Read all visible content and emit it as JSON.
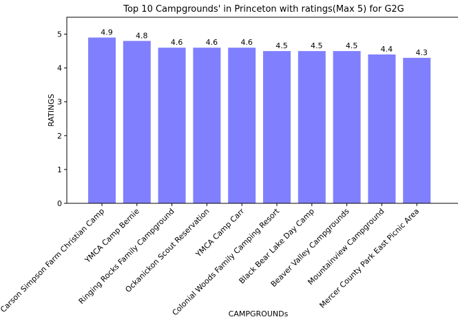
{
  "chart_data": {
    "type": "bar",
    "title": "Top 10 Campgrounds' in Princeton with ratings(Max 5) for G2G",
    "xlabel": "CAMPGROUNDs",
    "ylabel": "RATINGS",
    "categories": [
      "Carson Simpson Farm Christian Camp",
      "YMCA Camp Bernie",
      "Ringing Rocks Family Campground",
      "Ockanickon Scout Reservation",
      "YMCA Camp Carr",
      "Colonial Woods Family Camping Resort",
      "Black Bear Lake Day Camp",
      "Beaver Valley Campgrounds",
      "Mountainview Campground",
      "Mercer County Park East Picnic Area"
    ],
    "values": [
      4.9,
      4.8,
      4.6,
      4.6,
      4.6,
      4.5,
      4.5,
      4.5,
      4.4,
      4.3
    ],
    "data_labels": [
      "4.9",
      "4.8",
      "4.6",
      "4.6",
      "4.6",
      "4.5",
      "4.5",
      "4.5",
      "4.4",
      "4.3"
    ],
    "yticks": [
      "0",
      "1",
      "2",
      "3",
      "4",
      "5"
    ],
    "ylim": [
      0,
      5.5
    ],
    "bar_color": "#8080ff",
    "grid": false,
    "legend": "none"
  }
}
